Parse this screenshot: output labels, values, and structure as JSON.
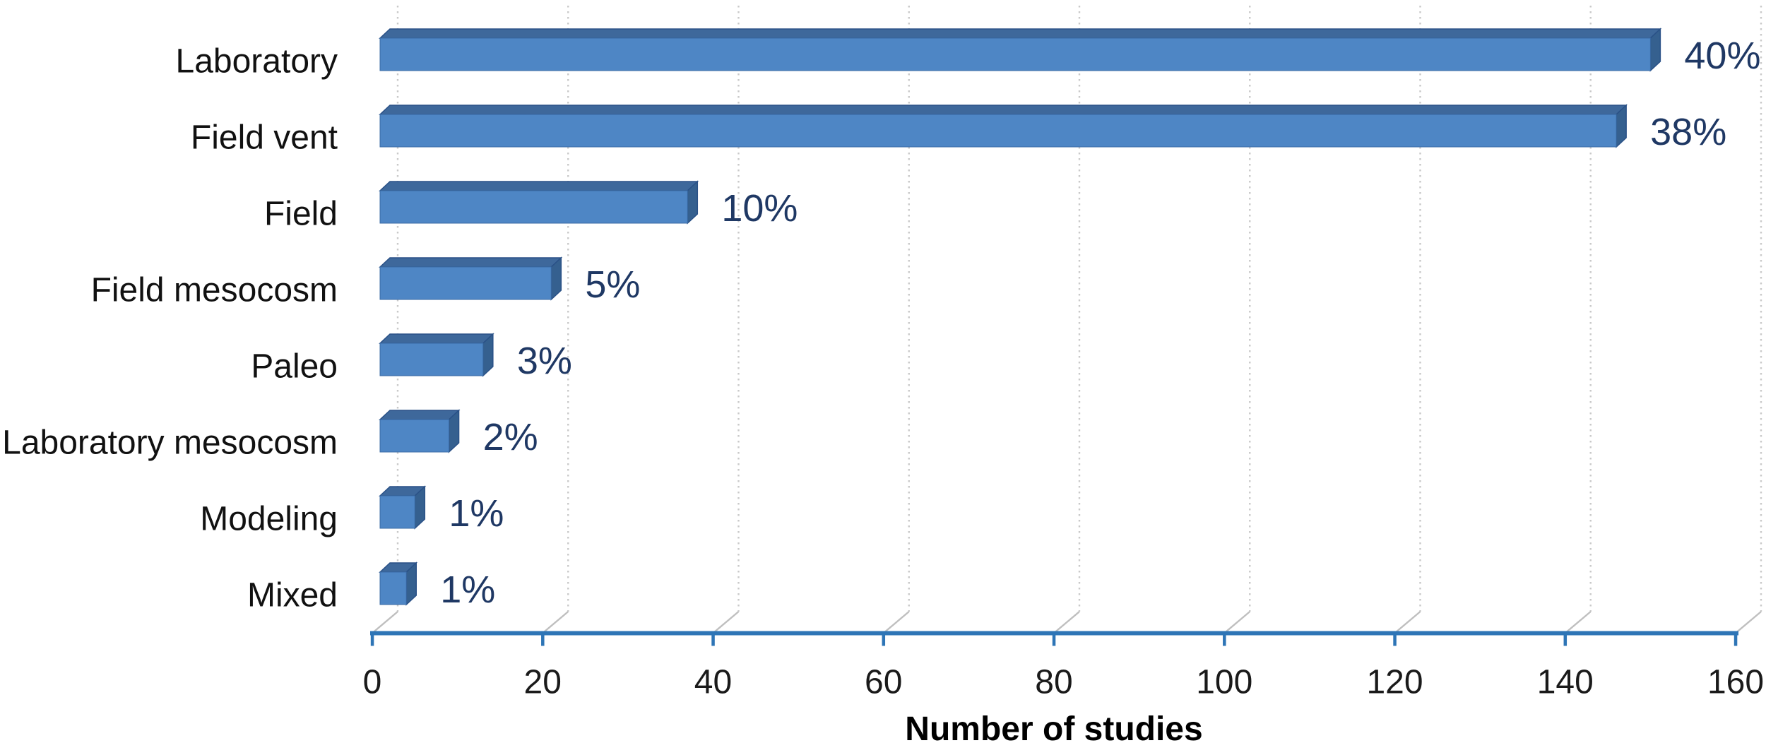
{
  "figure": {
    "background": "#ffffff"
  },
  "chart_data": {
    "type": "bar",
    "orientation": "horizontal",
    "style": "3d-excel",
    "title": "",
    "xlabel": "Number of studies",
    "ylabel": "",
    "categories": [
      "Laboratory",
      "Field vent",
      "Field",
      "Field mesocosm",
      "Paleo",
      "Laboratory mesocosm",
      "Modeling",
      "Mixed"
    ],
    "values": [
      150,
      146,
      37,
      21,
      13,
      9,
      5,
      4
    ],
    "value_labels": [
      "40%",
      "38%",
      "10%",
      "5%",
      "3%",
      "2%",
      "1%",
      "1%"
    ],
    "series_note": "values estimated from axis gridlines; percentage data labels shown on chart",
    "x_ticks": [
      0,
      20,
      40,
      60,
      80,
      100,
      120,
      140,
      160
    ],
    "xlim": [
      0,
      160
    ],
    "grid": "vertical-dotted-light-gray",
    "legend": "none",
    "colors": {
      "bar_front": "#4E86C5",
      "bar_top": "#3E689B",
      "bar_side": "#35608F",
      "bar_edge": "#2A5187",
      "axis_line": "#2E75B6",
      "gridline": "#C9C9C9",
      "gridline_foot": "#BFBFBF",
      "data_label": "#1F3864",
      "tick_label": "#1A1A1A",
      "category_label": "#111111",
      "axis_title": "#000000"
    }
  }
}
